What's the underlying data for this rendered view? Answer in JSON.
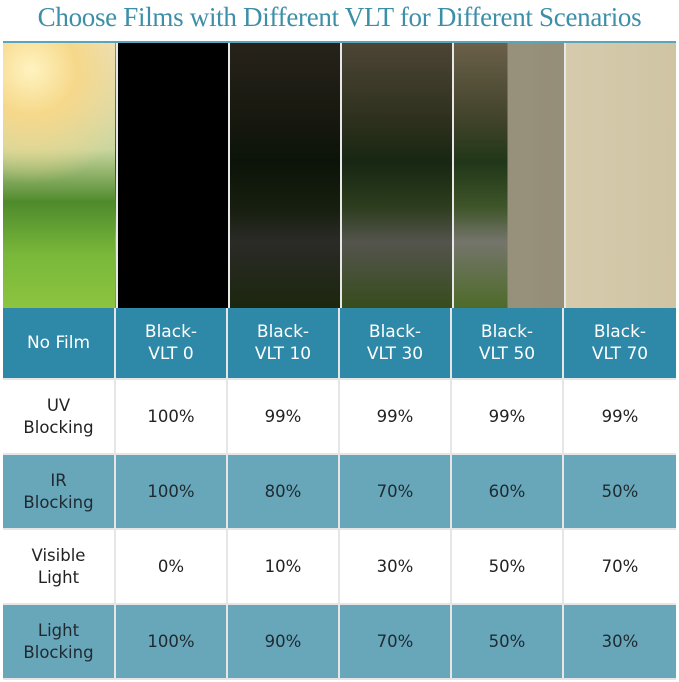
{
  "title": "Choose Films with Different VLT for Different Scenarios",
  "colors": {
    "title": "#3d8fa8",
    "header": "#2e88a7",
    "shaded_row": "#68a6ba",
    "white_row": "#ffffff"
  },
  "header": [
    "No Film",
    "Black-\nVLT 0",
    "Black-\nVLT 10",
    "Black-\nVLT 30",
    "Black-\nVLT 50",
    "Black-\nVLT 70"
  ],
  "panel_darkness": [
    0,
    1.0,
    0.75,
    0.5,
    0.3,
    0
  ],
  "rows": [
    {
      "label": "UV\nBlocking",
      "values": [
        "100%",
        "99%",
        "99%",
        "99%",
        "99%"
      ]
    },
    {
      "label": "IR\nBlocking",
      "values": [
        "100%",
        "80%",
        "70%",
        "60%",
        "50%"
      ]
    },
    {
      "label": "Visible\nLight",
      "values": [
        "0%",
        "10%",
        "30%",
        "50%",
        "70%"
      ]
    },
    {
      "label": "Light\nBlocking",
      "values": [
        "100%",
        "90%",
        "70%",
        "50%",
        "30%"
      ]
    }
  ]
}
